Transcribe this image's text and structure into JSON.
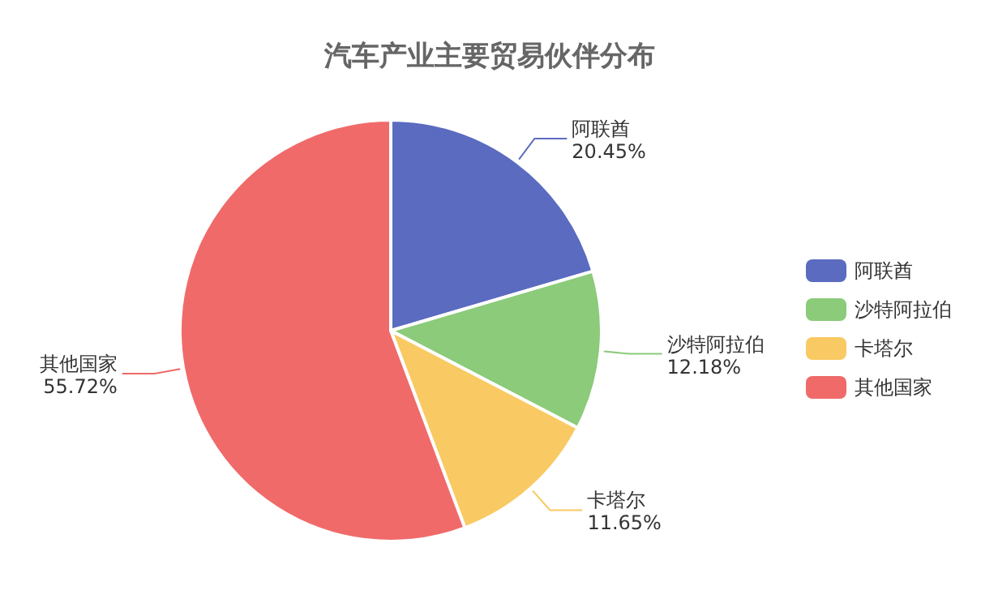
{
  "chart_data": {
    "type": "pie",
    "title": "汽车产业主要贸易伙伴分布",
    "categories": [
      "阿联酋",
      "沙特阿拉伯",
      "卡塔尔",
      "其他国家"
    ],
    "values": [
      20.45,
      12.18,
      11.65,
      55.72
    ],
    "value_labels": [
      "20.45%",
      "12.18%",
      "11.65%",
      "55.72%"
    ],
    "colors": [
      "#5b6bc0",
      "#8bcb7a",
      "#f9ca63",
      "#f06a6a"
    ],
    "legend": "right"
  }
}
